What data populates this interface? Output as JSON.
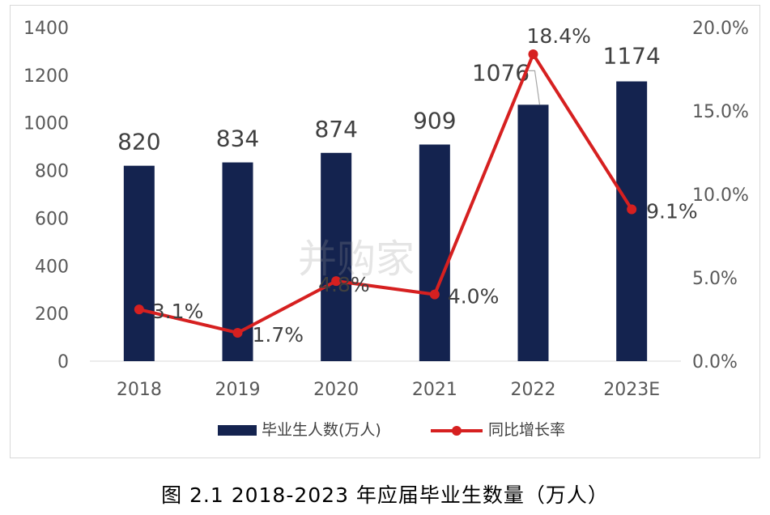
{
  "chart_data": {
    "type": "bar+line",
    "categories": [
      "2018",
      "2019",
      "2020",
      "2021",
      "2022",
      "2023E"
    ],
    "series": [
      {
        "name": "毕业生人数(万人)",
        "type": "bar",
        "axis": "left",
        "values": [
          820,
          834,
          874,
          909,
          1076,
          1174
        ],
        "labels": [
          "820",
          "834",
          "874",
          "909",
          "1076",
          "1174"
        ],
        "color": "#14234f"
      },
      {
        "name": "同比增长率",
        "type": "line",
        "axis": "right",
        "values": [
          3.1,
          1.7,
          4.8,
          4.0,
          18.4,
          9.1
        ],
        "labels": [
          "3.1%",
          "1.7%",
          "4.8%",
          "4.0%",
          "18.4%",
          "9.1%"
        ],
        "color": "#d62020"
      }
    ],
    "y_left": {
      "ylim": [
        0,
        1400
      ],
      "ticks": [
        "0",
        "200",
        "400",
        "600",
        "800",
        "1000",
        "1200",
        "1400"
      ]
    },
    "y_right": {
      "ylim": [
        0,
        20
      ],
      "ticks": [
        "0.0%",
        "5.0%",
        "10.0%",
        "15.0%",
        "20.0%"
      ]
    },
    "legend": {
      "placement": "bottom"
    },
    "grid": false
  },
  "caption": "图 2.1   2018-2023 年应届毕业生数量（万人）",
  "watermark": "并购家"
}
